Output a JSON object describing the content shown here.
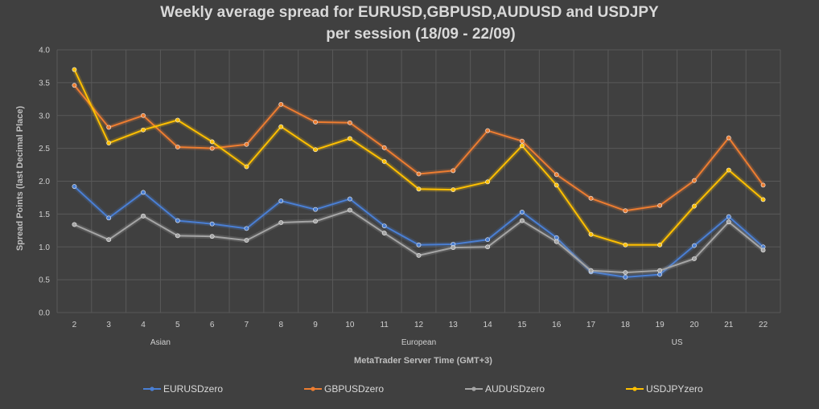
{
  "chart_data": {
    "type": "line",
    "title": "Weekly average spread for EURUSD,GBPUSD,AUDUSD and USDJPY",
    "subtitle": "per session (18/09 - 22/09)",
    "xlabel": "MetaTrader Server Time (GMT+3)",
    "ylabel": "Spread Points  (last Decimal Place)",
    "ylim": [
      0,
      4
    ],
    "yticks": [
      "0.0",
      "0.5",
      "1.0",
      "1.5",
      "2.0",
      "2.5",
      "3.0",
      "3.5",
      "4.0"
    ],
    "grid": true,
    "legend": "bottom",
    "categories": [
      "2",
      "3",
      "4",
      "5",
      "6",
      "7",
      "8",
      "9",
      "10",
      "11",
      "12",
      "13",
      "14",
      "15",
      "16",
      "17",
      "18",
      "19",
      "20",
      "21",
      "22"
    ],
    "groups": [
      {
        "label": "Asian"
      },
      {
        "label": "European"
      },
      {
        "label": "US"
      }
    ],
    "series": [
      {
        "name": "EURUSDzero",
        "color": "#4a7fd4",
        "values": [
          1.92,
          1.44,
          1.83,
          1.4,
          1.35,
          1.28,
          1.7,
          1.57,
          1.73,
          1.32,
          1.03,
          1.04,
          1.11,
          1.53,
          1.14,
          0.62,
          0.54,
          0.58,
          1.02,
          1.46,
          1.0
        ]
      },
      {
        "name": "GBPUSDzero",
        "color": "#ed7d31",
        "values": [
          3.46,
          2.82,
          3.0,
          2.52,
          2.5,
          2.56,
          3.17,
          2.9,
          2.89,
          2.51,
          2.11,
          2.16,
          2.77,
          2.61,
          2.1,
          1.74,
          1.55,
          1.63,
          2.01,
          2.66,
          1.94
        ]
      },
      {
        "name": "AUDUSDzero",
        "color": "#a5a5a5",
        "values": [
          1.34,
          1.11,
          1.47,
          1.17,
          1.16,
          1.1,
          1.37,
          1.39,
          1.56,
          1.21,
          0.87,
          0.99,
          1.0,
          1.4,
          1.08,
          0.64,
          0.61,
          0.64,
          0.82,
          1.38,
          0.95
        ]
      },
      {
        "name": "USDJPYzero",
        "color": "#ffc000",
        "values": [
          3.7,
          2.58,
          2.78,
          2.93,
          2.6,
          2.22,
          2.83,
          2.48,
          2.65,
          2.3,
          1.88,
          1.87,
          1.99,
          2.54,
          1.94,
          1.19,
          1.03,
          1.03,
          1.62,
          2.17,
          1.72
        ]
      }
    ]
  }
}
